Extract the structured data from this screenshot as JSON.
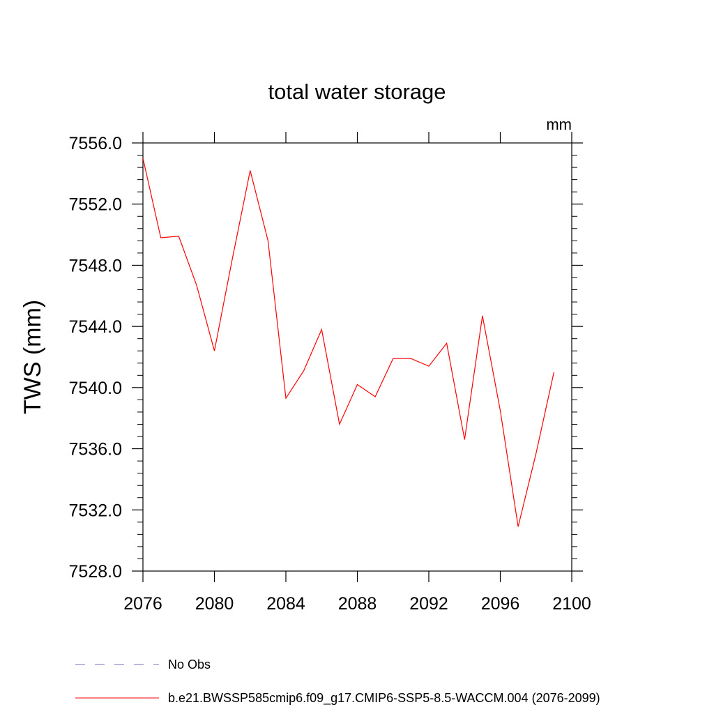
{
  "chart_data": {
    "type": "line",
    "title": "total water storage",
    "units_label": "mm",
    "ylabel": "TWS  (mm)",
    "xlabel": "",
    "xlim": [
      2076,
      2100
    ],
    "ylim": [
      7528.0,
      7556.0
    ],
    "x_ticks": [
      2076,
      2080,
      2084,
      2088,
      2092,
      2096,
      2100
    ],
    "x_tick_labels": [
      "2076",
      "2080",
      "2084",
      "2088",
      "2092",
      "2096",
      "2100"
    ],
    "y_ticks": [
      7528,
      7532,
      7536,
      7540,
      7544,
      7548,
      7552,
      7556
    ],
    "y_tick_labels": [
      "7528.0",
      "7532.0",
      "7536.0",
      "7540.0",
      "7544.0",
      "7548.0",
      "7552.0",
      "7556.0"
    ],
    "grid": false,
    "legend_position": "bottom",
    "series": [
      {
        "name": "b.e21.BWSSP585cmip6.f09_g17.CMIP6-SSP5-8.5-WACCM.004 (2076-2099)",
        "color": "#ff0000",
        "style": "solid",
        "x": [
          2076,
          2077,
          2078,
          2079,
          2080,
          2081,
          2082,
          2083,
          2084,
          2085,
          2086,
          2087,
          2088,
          2089,
          2090,
          2091,
          2092,
          2093,
          2094,
          2095,
          2096,
          2097,
          2098,
          2099
        ],
        "values": [
          7555.0,
          7549.8,
          7549.9,
          7546.7,
          7542.4,
          7548.4,
          7554.2,
          7549.6,
          7539.3,
          7541.1,
          7543.8,
          7537.6,
          7540.2,
          7539.4,
          7541.9,
          7541.9,
          7541.4,
          7542.9,
          7536.6,
          7544.7,
          7538.5,
          7530.9,
          7535.7,
          7541.0
        ]
      }
    ],
    "legend": [
      {
        "label": "No Obs",
        "color": "#6f6fbf",
        "style": "dashed"
      },
      {
        "label": "b.e21.BWSSP585cmip6.f09_g17.CMIP6-SSP5-8.5-WACCM.004 (2076-2099)",
        "color": "#ff0000",
        "style": "solid"
      }
    ]
  }
}
